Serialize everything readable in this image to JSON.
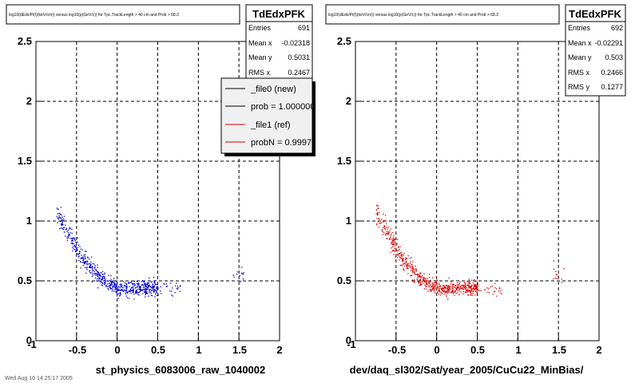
{
  "footer": "Wed Aug 10 14:25:17 2005",
  "colors": {
    "new_series": "#0000cc",
    "ref_series": "#dd0000",
    "legend_black": "#000000",
    "legend_red": "#dd0000"
  },
  "chart_data": [
    {
      "type": "scatter",
      "title": "log10(dEdx/Pi(I)(keV/cm)) versus log10(p(GeV/c)) for Tpc.TrackLength > 40 cm and Prob > 68.3",
      "xlabel": "st_physics_6083006_raw_1040002",
      "ylabel": "",
      "xlim": [
        -1,
        2
      ],
      "ylim": [
        0,
        2.5
      ],
      "xticks": [
        "-1",
        "-0.5",
        "0",
        "0.5",
        "1",
        "1.5",
        "2"
      ],
      "yticks": [
        "0",
        "0.5",
        "1",
        "1.5",
        "2",
        "2.5"
      ],
      "grid": true,
      "series_color": "#0000cc",
      "stats": {
        "title": "TdEdxPFK",
        "rows": [
          {
            "label": "Entries",
            "value": "691"
          },
          {
            "label": "Mean x",
            "value": "-0.02318"
          },
          {
            "label": "Mean y",
            "value": "0.5031"
          },
          {
            "label": "RMS x",
            "value": "0.2467"
          }
        ]
      },
      "legend": {
        "placement": "top-right",
        "entries": [
          {
            "label": "_file0 (new)",
            "color": "#000000"
          },
          {
            "label": "prob = 1.000000",
            "color": "#000000"
          },
          {
            "label": "_file1 (ref)",
            "color": "#dd0000"
          },
          {
            "label": "probN = 0.999760",
            "color": "#dd0000"
          }
        ]
      }
    },
    {
      "type": "scatter",
      "title": "log10(dEdx/Pi(I)(keV/cm)) versus log10(p(GeV/c)) for Tpc.TrackLength > 40 cm and Prob > 68.3",
      "xlabel": "dev/daq_sl302/Sat/year_2005/CuCu22_MinBias/",
      "ylabel": "",
      "xlim": [
        -1,
        2
      ],
      "ylim": [
        0,
        2.5
      ],
      "xticks": [
        "-1",
        "-0.5",
        "0",
        "0.5",
        "1",
        "1.5",
        "2"
      ],
      "yticks": [
        "0",
        "0.5",
        "1",
        "1.5",
        "2",
        "2.5"
      ],
      "grid": true,
      "series_color": "#dd0000",
      "stats": {
        "title": "TdEdxPFK",
        "rows": [
          {
            "label": "Entries",
            "value": "692"
          },
          {
            "label": "Mean x",
            "value": "-0.02291"
          },
          {
            "label": "Mean y",
            "value": "0.503"
          },
          {
            "label": "RMS x",
            "value": "0.2466"
          },
          {
            "label": "RMS y",
            "value": "0.1277"
          }
        ]
      }
    }
  ]
}
